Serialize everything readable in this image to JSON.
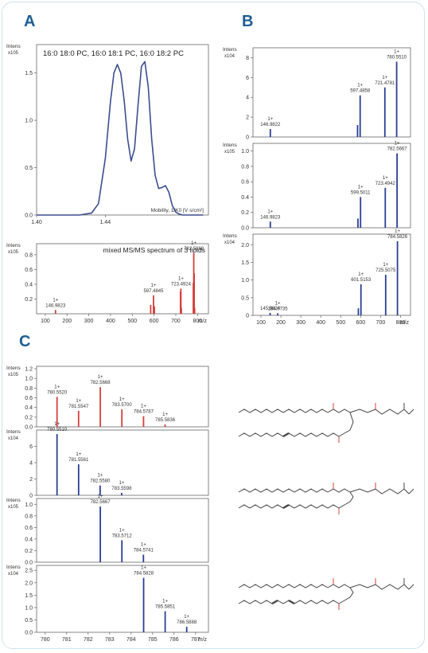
{
  "panel_labels": {
    "A": "A",
    "B": "B",
    "C": "C"
  },
  "colors": {
    "accent": "#1d5f93",
    "mobility": "#3b4d8f",
    "red": "#d4403a",
    "blue": "#2a3f94",
    "frame": "#cfe2ef"
  },
  "chart_data": [
    {
      "id": "A-mobilogram",
      "type": "line",
      "title": "16:0 18:0 PC, 16:0 18:1 PC, 16:0 18:2 PC",
      "ylabel": "Intens",
      "yexp": "x10^5",
      "xlabel": "Mobility, 1/K0 [V·s/cm²]",
      "xlim": [
        1.4,
        1.5
      ],
      "ylim": [
        0,
        1.8
      ],
      "xticks": [
        {
          "v": 1.4,
          "t": "1.40"
        },
        {
          "v": 1.44,
          "t": "1.44"
        }
      ],
      "yticks": [
        {
          "v": 0,
          "t": "0.0"
        },
        {
          "v": 0.5,
          "t": "0.5"
        },
        {
          "v": 1.0,
          "t": "1.0"
        },
        {
          "v": 1.5,
          "t": "1.5"
        }
      ],
      "x": [
        1.4,
        1.415,
        1.425,
        1.432,
        1.436,
        1.44,
        1.443,
        1.445,
        1.447,
        1.449,
        1.451,
        1.453,
        1.455,
        1.457,
        1.459,
        1.461,
        1.463,
        1.465,
        1.467,
        1.469,
        1.471,
        1.473,
        1.475,
        1.477,
        1.479,
        1.481,
        1.483,
        1.485,
        1.488,
        1.492,
        1.497
      ],
      "y": [
        0,
        0,
        0,
        0.02,
        0.12,
        0.6,
        1.2,
        1.5,
        1.59,
        1.5,
        1.2,
        0.8,
        0.57,
        0.7,
        1.15,
        1.57,
        1.62,
        1.35,
        0.8,
        0.42,
        0.28,
        0.29,
        0.31,
        0.24,
        0.1,
        0.03,
        0.01,
        0,
        0,
        0,
        0
      ]
    },
    {
      "id": "A-msms",
      "type": "bar",
      "title": "mixed MS/MS spectrum of 3 lipids",
      "ylabel": "Intens",
      "yexp": "x10^5",
      "xlabel": "m/z",
      "xlim": [
        60,
        850
      ],
      "ylim": [
        0,
        0.95
      ],
      "xticks": [
        {
          "v": 100,
          "t": "100"
        },
        {
          "v": 200,
          "t": "200"
        },
        {
          "v": 300,
          "t": "300"
        },
        {
          "v": 400,
          "t": "400"
        },
        {
          "v": 500,
          "t": "500"
        },
        {
          "v": 600,
          "t": "600"
        },
        {
          "v": 700,
          "t": "700"
        },
        {
          "v": 800,
          "t": "800"
        }
      ],
      "yticks": [
        {
          "v": 0.2,
          "t": "0.2"
        },
        {
          "v": 0.4,
          "t": "0.4"
        },
        {
          "v": 0.6,
          "t": "0.6"
        },
        {
          "v": 0.8,
          "t": "0.8"
        }
      ],
      "peaks": [
        {
          "x": 146.98,
          "y": 0.05
        },
        {
          "x": 584.5,
          "y": 0.12
        },
        {
          "x": 597.48,
          "y": 0.25
        },
        {
          "x": 601.5,
          "y": 0.1
        },
        {
          "x": 721.48,
          "y": 0.3
        },
        {
          "x": 723.49,
          "y": 0.34
        },
        {
          "x": 725.5,
          "y": 0.08
        },
        {
          "x": 780.55,
          "y": 0.42
        },
        {
          "x": 782.57,
          "y": 0.82
        },
        {
          "x": 784.58,
          "y": 0.55
        },
        {
          "x": 786.6,
          "y": 0.08
        }
      ],
      "labels": [
        {
          "x": 146.98,
          "y": 0.05,
          "charge": "1+",
          "mz": "146.9823"
        },
        {
          "x": 597.48,
          "y": 0.25,
          "charge": "1+",
          "mz": "597.4845"
        },
        {
          "x": 723.49,
          "y": 0.34,
          "charge": "1+",
          "mz": "723.4924"
        },
        {
          "x": 782.57,
          "y": 0.82,
          "charge": "1+",
          "mz": "782.5668"
        }
      ]
    },
    {
      "id": "B1",
      "type": "bar",
      "ylabel": "Intens",
      "yexp": "x10^4",
      "xlim": [
        60,
        850
      ],
      "ylim": [
        0,
        9
      ],
      "yticks": [
        {
          "v": 0,
          "t": "0"
        },
        {
          "v": 2,
          "t": "2"
        },
        {
          "v": 4,
          "t": "4"
        },
        {
          "v": 6,
          "t": "6"
        },
        {
          "v": 8,
          "t": "8"
        }
      ],
      "peaks": [
        {
          "x": 146.98,
          "y": 0.8
        },
        {
          "x": 584.5,
          "y": 1.2
        },
        {
          "x": 597.49,
          "y": 4.2
        },
        {
          "x": 721.48,
          "y": 5.0
        },
        {
          "x": 780.55,
          "y": 7.6
        }
      ],
      "labels": [
        {
          "x": 146.98,
          "y": 0.8,
          "charge": "1+",
          "mz": "146.9822"
        },
        {
          "x": 597.49,
          "y": 4.2,
          "charge": "1+",
          "mz": "597.4858"
        },
        {
          "x": 721.48,
          "y": 5.0,
          "charge": "1+",
          "mz": "721.4781"
        },
        {
          "x": 780.55,
          "y": 7.6,
          "charge": "1+",
          "mz": "780.5510"
        }
      ]
    },
    {
      "id": "B2",
      "type": "bar",
      "ylabel": "Intens",
      "yexp": "x10^5",
      "xlim": [
        60,
        850
      ],
      "ylim": [
        0,
        1.1
      ],
      "yticks": [
        {
          "v": 0,
          "t": "0.0"
        },
        {
          "v": 0.2,
          "t": "0.2"
        },
        {
          "v": 0.4,
          "t": "0.4"
        },
        {
          "v": 0.6,
          "t": "0.6"
        },
        {
          "v": 0.8,
          "t": "0.8"
        },
        {
          "v": 1.0,
          "t": "1.0"
        }
      ],
      "peaks": [
        {
          "x": 146.98,
          "y": 0.08
        },
        {
          "x": 586.5,
          "y": 0.12
        },
        {
          "x": 599.5,
          "y": 0.4
        },
        {
          "x": 723.49,
          "y": 0.52
        },
        {
          "x": 782.57,
          "y": 0.97
        }
      ],
      "labels": [
        {
          "x": 146.98,
          "y": 0.08,
          "charge": "1+",
          "mz": "146.9823"
        },
        {
          "x": 599.5,
          "y": 0.4,
          "charge": "1+",
          "mz": "599.5011"
        },
        {
          "x": 723.49,
          "y": 0.52,
          "charge": "1+",
          "mz": "723.4942"
        },
        {
          "x": 782.57,
          "y": 0.97,
          "charge": "1+",
          "mz": "782.5667"
        }
      ]
    },
    {
      "id": "B3",
      "type": "bar",
      "ylabel": "Intens",
      "yexp": "x10^4",
      "xlabel": "m/z",
      "xlim": [
        60,
        850
      ],
      "ylim": [
        0,
        2.3
      ],
      "xticks": [
        {
          "v": 100,
          "t": "100"
        },
        {
          "v": 200,
          "t": "200"
        },
        {
          "v": 300,
          "t": "300"
        },
        {
          "v": 400,
          "t": "400"
        },
        {
          "v": 500,
          "t": "500"
        },
        {
          "v": 600,
          "t": "600"
        },
        {
          "v": 700,
          "t": "700"
        },
        {
          "v": 800,
          "t": "800"
        }
      ],
      "yticks": [
        {
          "v": 0,
          "t": "0"
        },
        {
          "v": 0.5,
          "t": "0.5"
        },
        {
          "v": 1.0,
          "t": "1.0"
        },
        {
          "v": 1.5,
          "t": "1.5"
        },
        {
          "v": 2.0,
          "t": "2.0"
        }
      ],
      "peaks": [
        {
          "x": 145.98,
          "y": 0.07
        },
        {
          "x": 184.07,
          "y": 0.06
        },
        {
          "x": 588.5,
          "y": 0.2
        },
        {
          "x": 601.52,
          "y": 0.88
        },
        {
          "x": 725.51,
          "y": 1.15
        },
        {
          "x": 784.58,
          "y": 2.1
        }
      ],
      "labels": [
        {
          "x": 145.98,
          "y": 0.07,
          "charge": "",
          "mz": "145.9824"
        },
        {
          "x": 184.07,
          "y": 0.06,
          "charge": "1+",
          "mz": "184.0735"
        },
        {
          "x": 601.52,
          "y": 0.88,
          "charge": "1+",
          "mz": "601.5153"
        },
        {
          "x": 725.51,
          "y": 1.15,
          "charge": "1+",
          "mz": "725.5075"
        },
        {
          "x": 784.58,
          "y": 2.1,
          "charge": "1+",
          "mz": "784.5826"
        }
      ]
    },
    {
      "id": "C1",
      "type": "bar",
      "ylabel": "Intens",
      "yexp": "x10^5",
      "xlim": [
        779.6,
        787.6
      ],
      "ylim": [
        0,
        1.25
      ],
      "color": "red",
      "yticks": [
        {
          "v": 0,
          "t": "0.0"
        },
        {
          "v": 0.2,
          "t": "0.2"
        },
        {
          "v": 0.4,
          "t": "0.4"
        },
        {
          "v": 0.6,
          "t": "0.6"
        },
        {
          "v": 0.8,
          "t": "0.8"
        },
        {
          "v": 1.0,
          "t": "1.0"
        },
        {
          "v": 1.2,
          "t": "1.2"
        }
      ],
      "peaks": [
        {
          "x": 780.552,
          "y": 0.62
        },
        {
          "x": 781.5547,
          "y": 0.33
        },
        {
          "x": 782.5668,
          "y": 0.82
        },
        {
          "x": 783.57,
          "y": 0.36
        },
        {
          "x": 784.5787,
          "y": 0.22
        },
        {
          "x": 785.5836,
          "y": 0.05
        }
      ],
      "labels": [
        {
          "x": 780.552,
          "y": 0.62,
          "charge": "1+",
          "mz": "780.5520"
        },
        {
          "x": 781.5547,
          "y": 0.33,
          "charge": "1+",
          "mz": "781.5547"
        },
        {
          "x": 782.5668,
          "y": 0.82,
          "charge": "1+",
          "mz": "782.5668"
        },
        {
          "x": 783.57,
          "y": 0.36,
          "charge": "1+",
          "mz": "783.5700"
        },
        {
          "x": 784.5787,
          "y": 0.22,
          "charge": "1+",
          "mz": "784.5787"
        },
        {
          "x": 785.5836,
          "y": 0.05,
          "charge": "1+",
          "mz": "785.5836"
        }
      ]
    },
    {
      "id": "C2",
      "type": "bar",
      "ylabel": "Intens",
      "yexp": "x10^4",
      "xlim": [
        779.6,
        787.6
      ],
      "ylim": [
        0,
        8
      ],
      "color": "blue",
      "yticks": [
        {
          "v": 0,
          "t": "0"
        },
        {
          "v": 2,
          "t": "2"
        },
        {
          "v": 4,
          "t": "4"
        },
        {
          "v": 6,
          "t": "6"
        }
      ],
      "peaks": [
        {
          "x": 780.551,
          "y": 7.5
        },
        {
          "x": 781.5561,
          "y": 3.8
        },
        {
          "x": 782.558,
          "y": 1.2
        },
        {
          "x": 783.5598,
          "y": 0.3
        }
      ],
      "labels": [
        {
          "x": 780.551,
          "y": 7.5,
          "charge": "1+",
          "mz": "780.5510"
        },
        {
          "x": 781.5561,
          "y": 3.8,
          "charge": "1+",
          "mz": "781.5561"
        },
        {
          "x": 782.558,
          "y": 1.2,
          "charge": "1+",
          "mz": "782.5580"
        },
        {
          "x": 783.5598,
          "y": 0.3,
          "charge": "1+",
          "mz": "783.5598"
        }
      ]
    },
    {
      "id": "C3",
      "type": "bar",
      "ylabel": "Intens",
      "yexp": "x10^5",
      "xlim": [
        779.6,
        787.6
      ],
      "ylim": [
        0,
        1.1
      ],
      "color": "blue",
      "yticks": [
        {
          "v": 0,
          "t": "0.0"
        },
        {
          "v": 0.2,
          "t": "0.2"
        },
        {
          "v": 0.4,
          "t": "0.4"
        },
        {
          "v": 0.6,
          "t": "0.6"
        },
        {
          "v": 0.8,
          "t": "0.8"
        },
        {
          "v": 1.0,
          "t": "1.0"
        }
      ],
      "peaks": [
        {
          "x": 782.5667,
          "y": 0.96
        },
        {
          "x": 783.5712,
          "y": 0.38
        },
        {
          "x": 784.5741,
          "y": 0.13
        }
      ],
      "labels": [
        {
          "x": 782.5667,
          "y": 0.96,
          "charge": "1+",
          "mz": "782.5667"
        },
        {
          "x": 783.5712,
          "y": 0.38,
          "charge": "1+",
          "mz": "783.5712"
        },
        {
          "x": 784.5741,
          "y": 0.13,
          "charge": "1+",
          "mz": "784.5741"
        }
      ]
    },
    {
      "id": "C4",
      "type": "bar",
      "ylabel": "Intens",
      "yexp": "x10^4",
      "xlabel": "m/z",
      "xlim": [
        779.6,
        787.6
      ],
      "ylim": [
        0,
        2.7
      ],
      "color": "blue",
      "xticks": [
        {
          "v": 780,
          "t": "780"
        },
        {
          "v": 781,
          "t": "781"
        },
        {
          "v": 782,
          "t": "782"
        },
        {
          "v": 783,
          "t": "783"
        },
        {
          "v": 784,
          "t": "784"
        },
        {
          "v": 785,
          "t": "785"
        },
        {
          "v": 786,
          "t": "786"
        },
        {
          "v": 787,
          "t": "787"
        }
      ],
      "yticks": [
        {
          "v": 0,
          "t": "0.0"
        },
        {
          "v": 0.5,
          "t": "0.5"
        },
        {
          "v": 1.0,
          "t": "1.0"
        },
        {
          "v": 1.5,
          "t": "1.5"
        },
        {
          "v": 2.0,
          "t": "2.0"
        },
        {
          "v": 2.5,
          "t": "2.5"
        }
      ],
      "peaks": [
        {
          "x": 784.5828,
          "y": 2.2
        },
        {
          "x": 785.5851,
          "y": 0.85
        },
        {
          "x": 786.5888,
          "y": 0.22
        }
      ],
      "labels": [
        {
          "x": 784.5828,
          "y": 2.2,
          "charge": "1+",
          "mz": "784.5828"
        },
        {
          "x": 785.5851,
          "y": 0.85,
          "charge": "1+",
          "mz": "785.5851"
        },
        {
          "x": 786.5888,
          "y": 0.22,
          "charge": "1+",
          "mz": "786.5888"
        }
      ]
    }
  ]
}
